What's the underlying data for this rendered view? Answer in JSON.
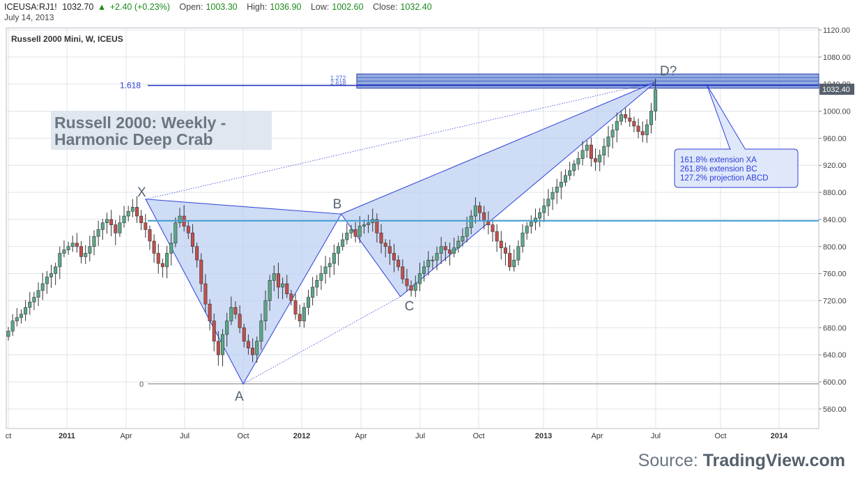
{
  "header": {
    "symbol": "ICEUSA:RJ1!",
    "last": "1032.70",
    "change": "+2.40 (+0.23%)",
    "open_label": "Open:",
    "open": "1003.30",
    "high_label": "High:",
    "high": "1036.90",
    "low_label": "Low:",
    "low": "1002.60",
    "close_label": "Close:",
    "close": "1032.40",
    "date": "July 14, 2013"
  },
  "source": {
    "prefix": "Source:",
    "name": "TradingView.com"
  },
  "colors": {
    "up": "#5aa889",
    "down": "#c0504d",
    "pattern_fill": "#b9cdf2",
    "pattern_line": "#2d3fd6",
    "hline": "#3fa0d4",
    "grid": "#dfe3ea"
  },
  "chart_data": {
    "type": "candlestick",
    "title": "Russell 2000 Mini, W, ICEUS",
    "annotation_title": [
      "Russell 2000: Weekly -",
      "Harmonic Deep Crab"
    ],
    "x_ticks": [
      "ct",
      "2011",
      "Apr",
      "Jul",
      "Oct",
      "2012",
      "Apr",
      "Jul",
      "Oct",
      "2013",
      "Apr",
      "Jul",
      "Oct",
      "2014"
    ],
    "y_ticks": [
      "1120.00",
      "1080.00",
      "1040.00",
      "1000.00",
      "960.00",
      "920.00",
      "880.00",
      "840.00",
      "800.00",
      "760.00",
      "720.00",
      "680.00",
      "640.00",
      "600.00",
      "560.00"
    ],
    "y_range": [
      545,
      1125
    ],
    "last_price_label": "1032.40",
    "horizontal_line": 838,
    "zero_level": 597,
    "fib_zone": {
      "low": 1034,
      "high": 1055,
      "labels": [
        "1.272",
        "2.618"
      ]
    },
    "fib_1618": {
      "label": "1.618",
      "value": 1038
    },
    "zero_label": "0",
    "points": [
      {
        "name": "X",
        "date": "2011-05",
        "value": 870
      },
      {
        "name": "A",
        "date": "2011-10",
        "value": 597
      },
      {
        "name": "B",
        "date": "2012-03",
        "value": 848
      },
      {
        "name": "C",
        "date": "2012-06",
        "value": 726
      },
      {
        "name": "D?",
        "date": "2013-07",
        "value": 1043
      }
    ],
    "callout": [
      "161.8% extension XA",
      "261.8% extension BC",
      "127.2% projection ABCD"
    ],
    "candles_weekly_close": [
      675,
      690,
      695,
      700,
      710,
      718,
      725,
      735,
      745,
      755,
      760,
      770,
      790,
      795,
      800,
      805,
      800,
      785,
      790,
      800,
      815,
      825,
      835,
      840,
      832,
      820,
      835,
      845,
      852,
      858,
      845,
      835,
      825,
      808,
      790,
      775,
      770,
      790,
      805,
      835,
      845,
      830,
      820,
      800,
      780,
      745,
      715,
      690,
      660,
      640,
      670,
      690,
      710,
      700,
      680,
      660,
      650,
      640,
      660,
      690,
      720,
      750,
      760,
      740,
      745,
      730,
      720,
      700,
      690,
      710,
      725,
      740,
      750,
      760,
      770,
      775,
      790,
      800,
      810,
      820,
      825,
      815,
      830,
      832,
      835,
      840,
      820,
      805,
      800,
      790,
      780,
      770,
      752,
      742,
      735,
      745,
      760,
      770,
      780,
      780,
      790,
      800,
      795,
      790,
      798,
      808,
      815,
      828,
      845,
      860,
      850,
      838,
      832,
      822,
      808,
      798,
      790,
      770,
      780,
      800,
      820,
      830,
      836,
      842,
      850,
      860,
      870,
      880,
      888,
      895,
      905,
      912,
      922,
      930,
      942,
      950,
      930,
      925,
      935,
      948,
      962,
      972,
      985,
      995,
      990,
      985,
      978,
      970,
      965,
      980,
      1000,
      1032
    ]
  }
}
